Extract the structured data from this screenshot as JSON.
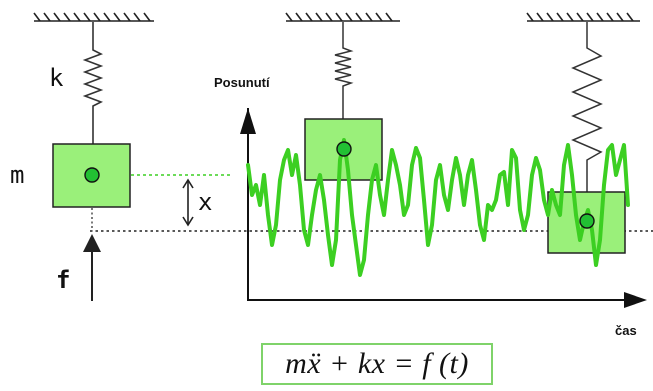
{
  "labels": {
    "spring_constant": "k",
    "mass": "m",
    "displacement": "x",
    "force": "f",
    "y_axis": "Posunutí",
    "x_axis": "čas"
  },
  "equation": "mẍ + kx = f (t)",
  "colors": {
    "mass_fill": "#9af07a",
    "mass_dot": "#22c033",
    "signal": "#3ccf22",
    "equation_border": "#7fd36a",
    "ink": "#111111"
  }
}
